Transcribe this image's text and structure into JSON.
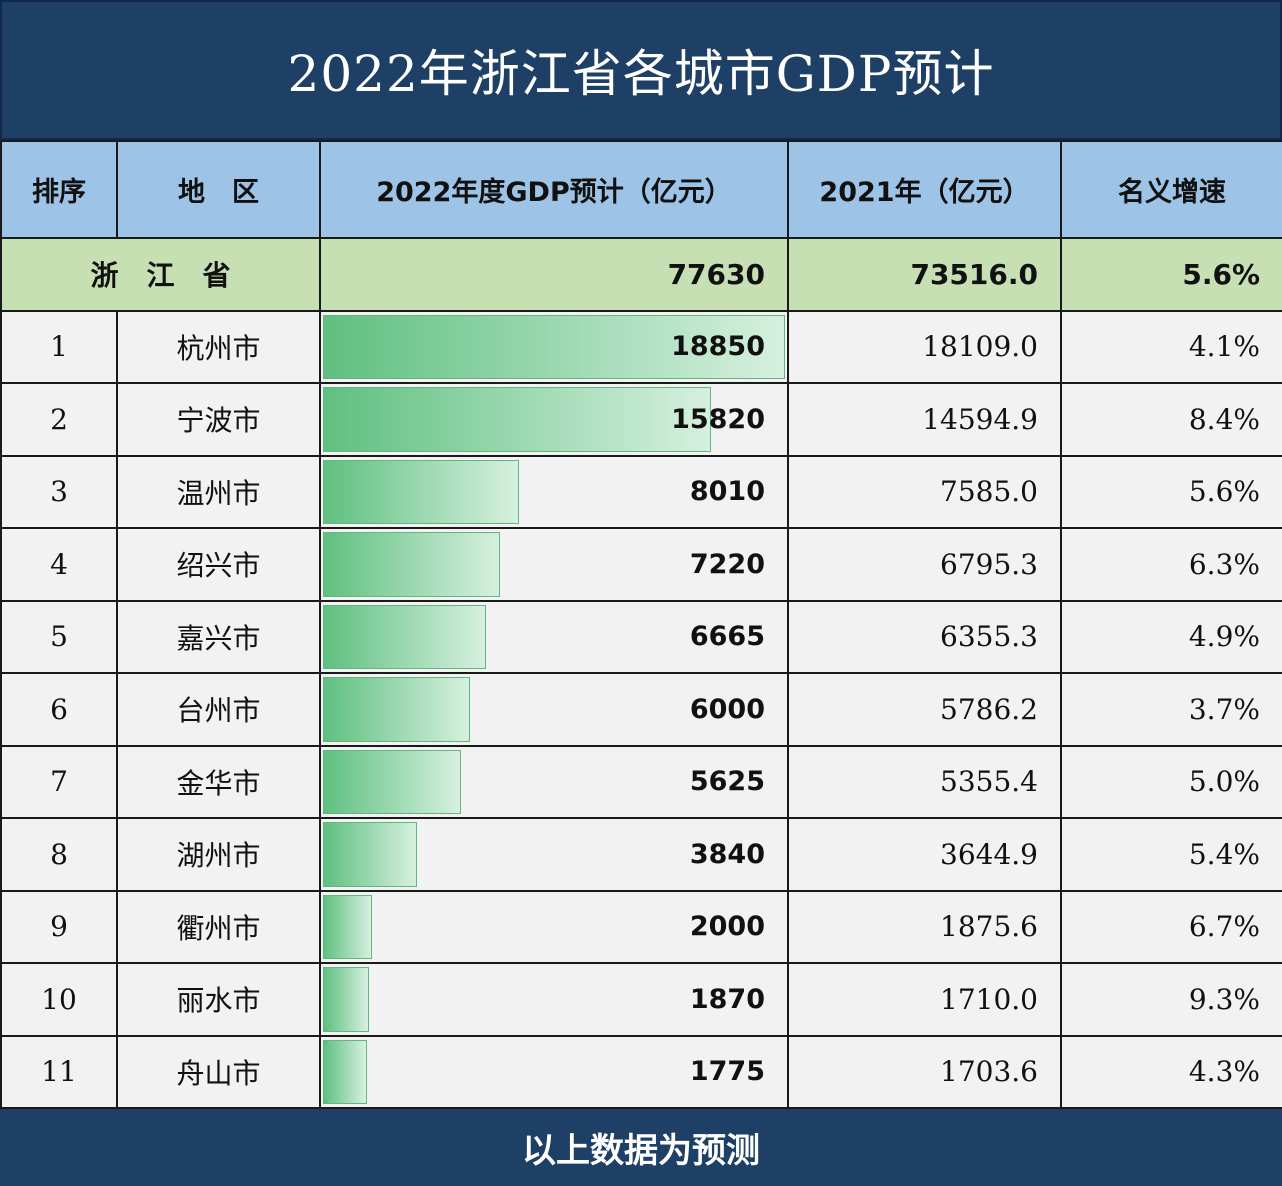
{
  "title": "2022年浙江省各城市GDP预计",
  "headers": [
    "排序",
    "地　区",
    "2022年度GDP预计（亿元）",
    "2021年（亿元）",
    "名义增速"
  ],
  "province": {
    "name": "浙　江　省",
    "gdp2022": "77630",
    "gdp2021": "73516.0",
    "growth": "5.6%"
  },
  "rows": [
    {
      "rank": "1",
      "city": "杭州市",
      "gdp2022": "18850",
      "gdp2021": "18109.0",
      "growth": "4.1%"
    },
    {
      "rank": "2",
      "city": "宁波市",
      "gdp2022": "15820",
      "gdp2021": "14594.9",
      "growth": "8.4%"
    },
    {
      "rank": "3",
      "city": "温州市",
      "gdp2022": "8010",
      "gdp2021": "7585.0",
      "growth": "5.6%"
    },
    {
      "rank": "4",
      "city": "绍兴市",
      "gdp2022": "7220",
      "gdp2021": "6795.3",
      "growth": "6.3%"
    },
    {
      "rank": "5",
      "city": "嘉兴市",
      "gdp2022": "6665",
      "gdp2021": "6355.3",
      "growth": "4.9%"
    },
    {
      "rank": "6",
      "city": "台州市",
      "gdp2022": "6000",
      "gdp2021": "5786.2",
      "growth": "3.7%"
    },
    {
      "rank": "7",
      "city": "金华市",
      "gdp2022": "5625",
      "gdp2021": "5355.4",
      "growth": "5.0%"
    },
    {
      "rank": "8",
      "city": "湖州市",
      "gdp2022": "3840",
      "gdp2021": "3644.9",
      "growth": "5.4%"
    },
    {
      "rank": "9",
      "city": "衢州市",
      "gdp2022": "2000",
      "gdp2021": "1875.6",
      "growth": "6.7%"
    },
    {
      "rank": "10",
      "city": "丽水市",
      "gdp2022": "1870",
      "gdp2021": "1710.0",
      "growth": "9.3%"
    },
    {
      "rank": "11",
      "city": "舟山市",
      "gdp2022": "1775",
      "gdp2021": "1703.6",
      "growth": "4.3%"
    }
  ],
  "footer": "以上数据为预测",
  "chart_data": {
    "type": "table",
    "title": "2022年浙江省各城市GDP预计",
    "bar_column": "2022年度GDP预计（亿元）",
    "categories": [
      "杭州市",
      "宁波市",
      "温州市",
      "绍兴市",
      "嘉兴市",
      "台州市",
      "金华市",
      "湖州市",
      "衢州市",
      "丽水市",
      "舟山市"
    ],
    "values": [
      18850,
      15820,
      8010,
      7220,
      6665,
      6000,
      5625,
      3840,
      2000,
      1870,
      1775
    ]
  },
  "colors": {
    "title_bg": "#1e3f66",
    "header_bg": "#9dc3e6",
    "province_bg": "#c6e0b4",
    "bar": "#5fc080"
  }
}
